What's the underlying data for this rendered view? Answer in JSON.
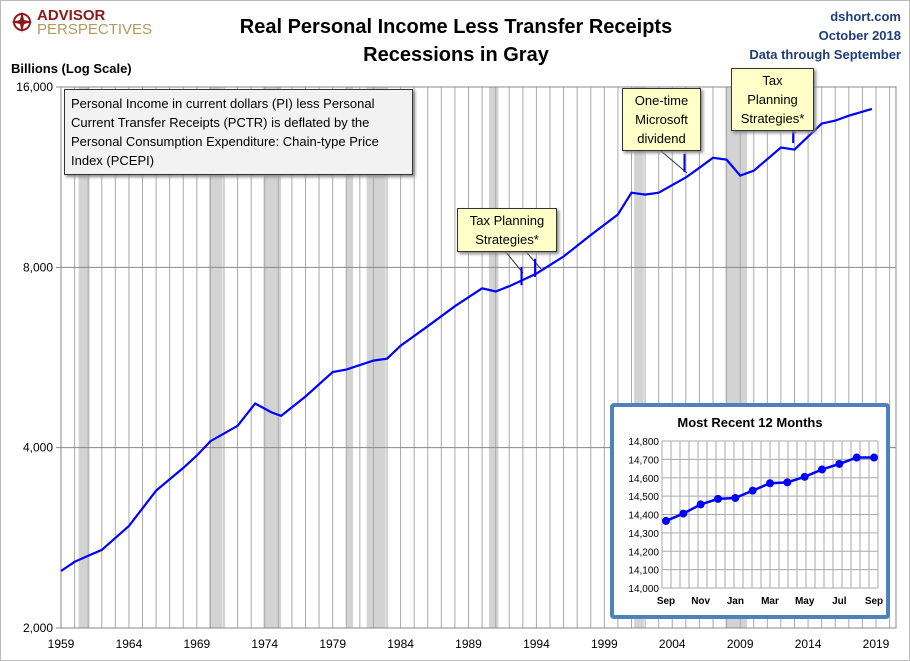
{
  "logo": {
    "line1": "ADVISOR",
    "line2": "PERSPECTIVES"
  },
  "source": {
    "site": "dshort.com",
    "date": "October 2018",
    "through": "Data through September"
  },
  "colors": {
    "series": "#0000ff",
    "recession": "#d3d3d3",
    "inset_border": "#4f81bd",
    "note_bg": "#ffffc8"
  },
  "chart_data": [
    {
      "type": "line",
      "title": "Real Personal Income Less Transfer Receipts",
      "subtitle": "Recessions in Gray",
      "ylabel": "Billions (Log Scale)",
      "yscale": "log2",
      "ylim": [
        2000,
        16000
      ],
      "yticks": [
        "2,000",
        "4,000",
        "8,000",
        "16,000"
      ],
      "ytick_values": [
        2000,
        4000,
        8000,
        16000
      ],
      "xlim": [
        1959,
        2020.5
      ],
      "xticks": [
        "1959",
        "1964",
        "1969",
        "1974",
        "1979",
        "1984",
        "1989",
        "1994",
        "1999",
        "2004",
        "2009",
        "2014",
        "2019"
      ],
      "grid": true,
      "x": [
        1959,
        1960,
        1961,
        1962,
        1964,
        1966,
        1968,
        1969,
        1970,
        1972,
        1973.3,
        1974.5,
        1975.2,
        1977,
        1979,
        1980,
        1982,
        1983,
        1984,
        1986,
        1988,
        1990,
        1991,
        1992,
        1994,
        1996,
        1998,
        2000,
        2001,
        2002,
        2003,
        2005,
        2006,
        2007,
        2008,
        2009,
        2010,
        2012,
        2013,
        2015,
        2016,
        2017,
        2018.7
      ],
      "y": [
        2490,
        2580,
        2640,
        2700,
        2960,
        3390,
        3700,
        3880,
        4100,
        4350,
        4740,
        4580,
        4520,
        4870,
        5350,
        5400,
        5590,
        5630,
        5920,
        6380,
        6890,
        7380,
        7290,
        7440,
        7810,
        8340,
        9060,
        9800,
        10660,
        10580,
        10660,
        11300,
        11730,
        12190,
        12100,
        11380,
        11600,
        12680,
        12580,
        13900,
        14060,
        14330,
        14710
      ],
      "recessions": [
        [
          1960.3,
          1961.1
        ],
        [
          1969.9,
          1970.9
        ],
        [
          1973.9,
          1975.2
        ],
        [
          1980.0,
          1980.5
        ],
        [
          1981.5,
          1982.9
        ],
        [
          1990.5,
          1991.2
        ],
        [
          2001.2,
          2001.9
        ],
        [
          2007.9,
          2009.5
        ]
      ],
      "annotations": [
        {
          "text": "Tax Planning Strategies*",
          "x": 1993
        },
        {
          "text": "One-time Microsoft dividend",
          "x": 2004.9
        },
        {
          "text": "Tax Planning Strategies*",
          "x": 2012.9
        }
      ],
      "description": "Personal Income in current dollars (PI) less Personal Current Transfer Receipts (PCTR) is deflated by the Personal Consumption Expenditure: Chain-type Price Index (PCEPI)"
    },
    {
      "type": "line",
      "title": "Most Recent 12 Months",
      "ylim": [
        14000,
        14800
      ],
      "yticks": [
        "14,000",
        "14,100",
        "14,200",
        "14,300",
        "14,400",
        "14,500",
        "14,600",
        "14,700",
        "14,800"
      ],
      "categories": [
        "Sep",
        "Oct",
        "Nov",
        "Dec",
        "Jan",
        "Feb",
        "Mar",
        "Apr",
        "May",
        "Jun",
        "Jul",
        "Aug",
        "Sep"
      ],
      "xtick_labels": [
        "Sep",
        "Nov",
        "Jan",
        "Mar",
        "May",
        "Jul",
        "Sep"
      ],
      "values": [
        14365,
        14405,
        14455,
        14485,
        14490,
        14530,
        14570,
        14575,
        14605,
        14645,
        14675,
        14710,
        14710
      ],
      "grid": true
    }
  ]
}
